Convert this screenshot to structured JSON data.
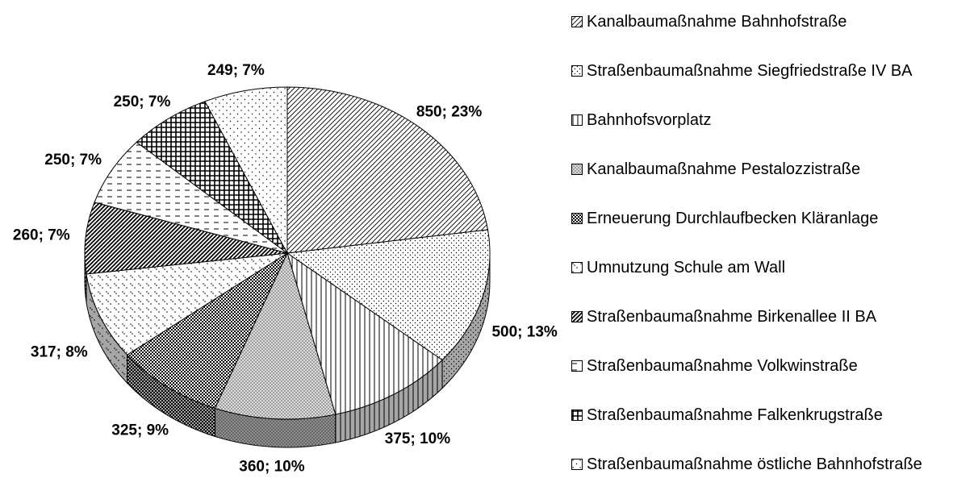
{
  "chart_data": {
    "type": "pie",
    "categories": [
      "Kanalbaumaßnahme Bahnhofstraße",
      "Straßenbaumaßnahme Siegfriedstraße IV BA",
      "Bahnhofsvorplatz",
      "Kanalbaumaßnahme Pestalozzistraße",
      "Erneuerung Durchlaufbecken Kläranlage",
      "Umnutzung Schule am Wall",
      "Straßenbaumaßnahme Birkenallee II BA",
      "Straßenbaumaßnahme Volkwinstraße",
      "Straßenbaumaßnahme Falkenkrugstraße",
      "Straßenbaumaßnahme östliche Bahnhofstraße"
    ],
    "values": [
      850,
      500,
      375,
      360,
      325,
      317,
      260,
      250,
      250,
      249
    ],
    "value_labels": [
      "850; 23%",
      "500; 13%",
      "375; 10%",
      "360; 10%",
      "325; 9%",
      "317; 8%",
      "260; 7%",
      "250; 7%",
      "250; 7%",
      "249; 7%"
    ],
    "legend": "right"
  }
}
